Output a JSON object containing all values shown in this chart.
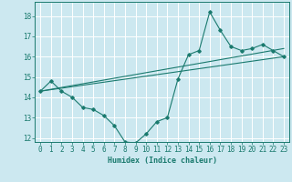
{
  "xlabel": "Humidex (Indice chaleur)",
  "ylabel": "",
  "bg_color": "#cce8f0",
  "grid_color": "#ffffff",
  "line_color": "#1a7a6e",
  "xlim": [
    -0.5,
    23.5
  ],
  "ylim": [
    11.8,
    18.7
  ],
  "yticks": [
    12,
    13,
    14,
    15,
    16,
    17,
    18
  ],
  "xticks": [
    0,
    1,
    2,
    3,
    4,
    5,
    6,
    7,
    8,
    9,
    10,
    11,
    12,
    13,
    14,
    15,
    16,
    17,
    18,
    19,
    20,
    21,
    22,
    23
  ],
  "series1_x": [
    0,
    1,
    2,
    3,
    4,
    5,
    6,
    7,
    8,
    9,
    10,
    11,
    12,
    13,
    14,
    15,
    16,
    17,
    18,
    19,
    20,
    21,
    22,
    23
  ],
  "series1_y": [
    14.3,
    14.8,
    14.3,
    14.0,
    13.5,
    13.4,
    13.1,
    12.6,
    11.8,
    11.75,
    12.2,
    12.8,
    13.0,
    14.9,
    16.1,
    16.3,
    18.2,
    17.3,
    16.5,
    16.3,
    16.4,
    16.6,
    16.3,
    16.0
  ],
  "series2_x": [
    0,
    23
  ],
  "series2_y": [
    14.3,
    16.4
  ],
  "series3_x": [
    0,
    23
  ],
  "series3_y": [
    14.3,
    16.0
  ]
}
